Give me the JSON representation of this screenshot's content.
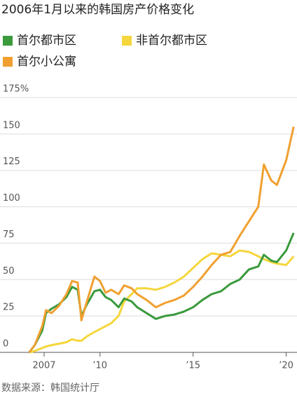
{
  "chart_data": {
    "type": "line",
    "title": "2006年1月以来的韩国房产价格变化",
    "source": "数据来源：韩国统计厅",
    "x": [
      2006.2,
      2006.5,
      2006.9,
      2007.1,
      2007.4,
      2007.8,
      2008.2,
      2008.5,
      2008.8,
      2009.0,
      2009.3,
      2009.7,
      2010.0,
      2010.3,
      2010.6,
      2011.0,
      2011.3,
      2011.7,
      2012.0,
      2012.5,
      2013.0,
      2013.5,
      2014.0,
      2014.5,
      2015.0,
      2015.5,
      2016.0,
      2016.5,
      2017.0,
      2017.5,
      2018.0,
      2018.5,
      2018.8,
      2019.2,
      2019.5,
      2020.0,
      2020.4
    ],
    "series": [
      {
        "name": "首尔都市区",
        "color": "#3a9a3c",
        "values": [
          0,
          5,
          15,
          27,
          30,
          33,
          38,
          45,
          43,
          25,
          33,
          42,
          43,
          38,
          36,
          31,
          37,
          35,
          31,
          27,
          23,
          25,
          26,
          28,
          31,
          36,
          40,
          42,
          47,
          50,
          57,
          59,
          67,
          63,
          62,
          70,
          82
        ]
      },
      {
        "name": "非首尔都市区",
        "color": "#f5d63d",
        "values": [
          0,
          1,
          3,
          4,
          5,
          6,
          7,
          9,
          8,
          8,
          11,
          14,
          16,
          18,
          20,
          25,
          35,
          40,
          44,
          44,
          43,
          45,
          48,
          52,
          58,
          64,
          68,
          67,
          66,
          70,
          69,
          66,
          64,
          62,
          61,
          60,
          66
        ]
      },
      {
        "name": "首尔小公寓",
        "color": "#f0a030",
        "values": [
          0,
          5,
          18,
          29,
          27,
          32,
          40,
          49,
          48,
          22,
          35,
          52,
          49,
          41,
          43,
          40,
          46,
          44,
          40,
          36,
          31,
          34,
          36,
          39,
          45,
          52,
          60,
          67,
          69,
          80,
          90,
          100,
          129,
          118,
          115,
          132,
          155
        ]
      }
    ],
    "xlim": [
      2004.63,
      2020.58
    ],
    "xticks": [
      2007,
      {
        "value": 2010,
        "label": "’10"
      },
      {
        "value": 2015,
        "label": "’15"
      },
      {
        "value": 2020,
        "label": "’20"
      }
    ],
    "ylim": [
      0,
      175
    ],
    "yticks": [
      0,
      25,
      50,
      75,
      100,
      125,
      150,
      {
        "value": 175,
        "label": "175%"
      }
    ],
    "grid": true
  }
}
